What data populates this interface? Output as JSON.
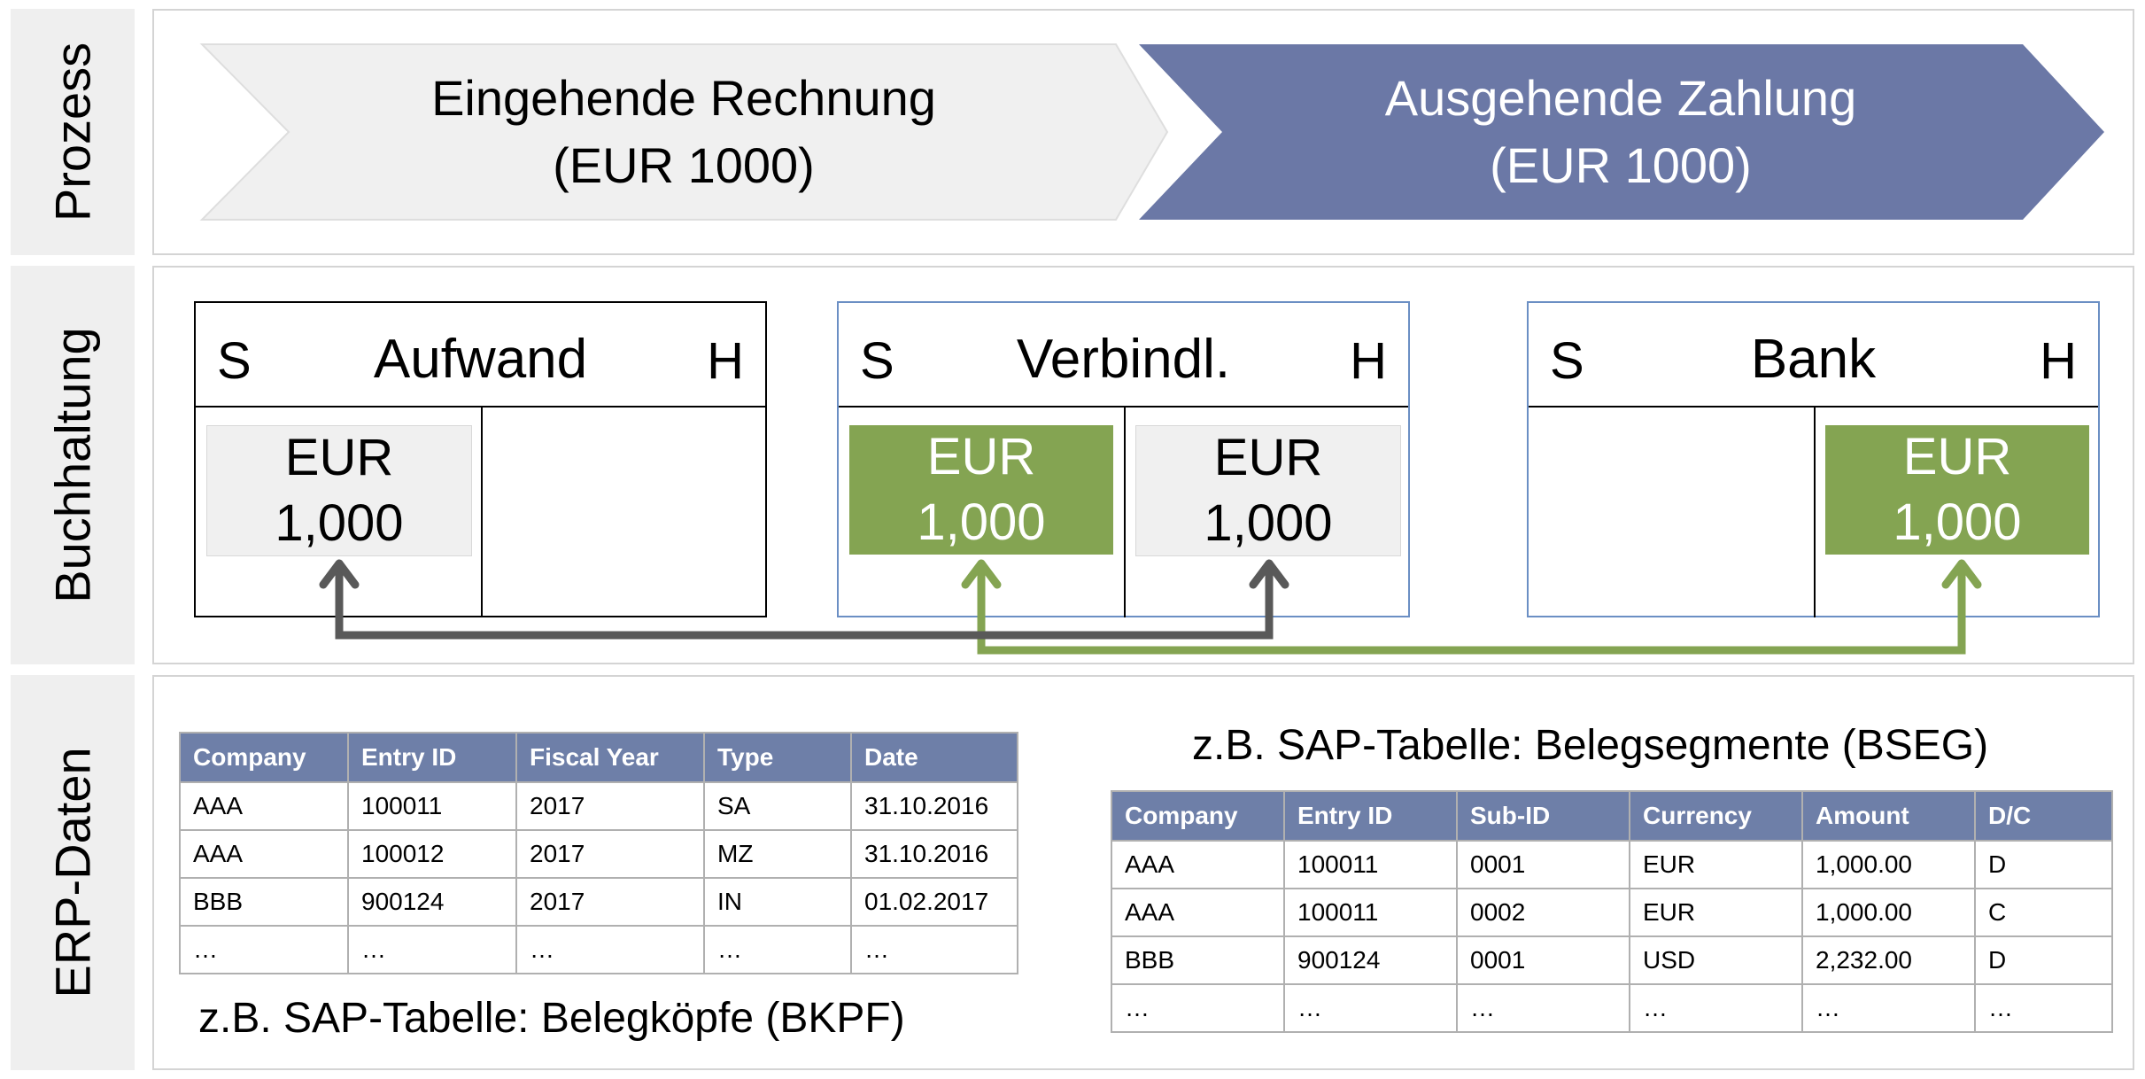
{
  "rows": {
    "process": "Prozess",
    "accounting": "Buchhaltung",
    "erp": "ERP-Daten"
  },
  "process": {
    "incoming": {
      "line1": "Eingehende Rechnung",
      "line2": "(EUR 1000)"
    },
    "outgoing": {
      "line1": "Ausgehende Zahlung",
      "line2": "(EUR 1000)"
    },
    "colors": {
      "incoming_fill": "#f0f0f0",
      "outgoing_fill": "#6b78a6"
    }
  },
  "accounts": {
    "expense": {
      "debit": "S",
      "title": "Aufwand",
      "credit": "H",
      "debit_entry": {
        "currency": "EUR",
        "amount": "1,000"
      }
    },
    "liabilities": {
      "debit": "S",
      "title": "Verbindl.",
      "credit": "H",
      "debit_entry": {
        "currency": "EUR",
        "amount": "1,000"
      },
      "credit_entry": {
        "currency": "EUR",
        "amount": "1,000"
      }
    },
    "bank": {
      "debit": "S",
      "title": "Bank",
      "credit": "H",
      "credit_entry": {
        "currency": "EUR",
        "amount": "1,000"
      }
    },
    "colors": {
      "invoice_arrow": "#595959",
      "payment_arrow": "#84a452"
    }
  },
  "bkpf": {
    "caption": "z.B. SAP-Tabelle: Belegköpfe (BKPF)",
    "headers": [
      "Company",
      "Entry ID",
      "Fiscal Year",
      "Type",
      "Date"
    ],
    "rows": [
      [
        "AAA",
        "100011",
        "2017",
        "SA",
        "31.10.2016"
      ],
      [
        "AAA",
        "100012",
        "2017",
        "MZ",
        "31.10.2016"
      ],
      [
        "BBB",
        "900124",
        "2017",
        "IN",
        "01.02.2017"
      ],
      [
        "…",
        "…",
        "…",
        "…",
        "…"
      ]
    ]
  },
  "bseg": {
    "caption": "z.B. SAP-Tabelle: Belegsegmente (BSEG)",
    "headers": [
      "Company",
      "Entry ID",
      "Sub-ID",
      "Currency",
      "Amount",
      "D/C"
    ],
    "rows": [
      [
        "AAA",
        "100011",
        "0001",
        "EUR",
        "1,000.00",
        "D"
      ],
      [
        "AAA",
        "100011",
        "0002",
        "EUR",
        "1,000.00",
        "C"
      ],
      [
        "BBB",
        "900124",
        "0001",
        "USD",
        "2,232.00",
        "D"
      ],
      [
        "…",
        "…",
        "…",
        "…",
        "…",
        "…"
      ]
    ]
  }
}
